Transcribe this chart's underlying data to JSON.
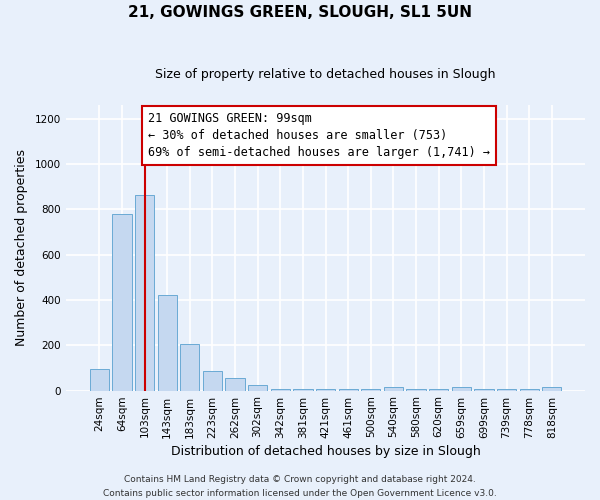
{
  "title": "21, GOWINGS GREEN, SLOUGH, SL1 5UN",
  "subtitle": "Size of property relative to detached houses in Slough",
  "xlabel": "Distribution of detached houses by size in Slough",
  "ylabel": "Number of detached properties",
  "bar_labels": [
    "24sqm",
    "64sqm",
    "103sqm",
    "143sqm",
    "183sqm",
    "223sqm",
    "262sqm",
    "302sqm",
    "342sqm",
    "381sqm",
    "421sqm",
    "461sqm",
    "500sqm",
    "540sqm",
    "580sqm",
    "620sqm",
    "659sqm",
    "699sqm",
    "739sqm",
    "778sqm",
    "818sqm"
  ],
  "bar_values": [
    95,
    780,
    865,
    420,
    205,
    85,
    55,
    25,
    8,
    5,
    5,
    5,
    5,
    15,
    5,
    5,
    15,
    5,
    5,
    5,
    15
  ],
  "bar_color": "#c5d8f0",
  "bar_edge_color": "#6aaad4",
  "vline_x_index": 2,
  "vline_color": "#cc0000",
  "annotation_line1": "21 GOWINGS GREEN: 99sqm",
  "annotation_line2": "← 30% of detached houses are smaller (753)",
  "annotation_line3": "69% of semi-detached houses are larger (1,741) →",
  "annotation_box_facecolor": "#ffffff",
  "annotation_box_edgecolor": "#cc0000",
  "ylim": [
    0,
    1260
  ],
  "yticks": [
    0,
    200,
    400,
    600,
    800,
    1000,
    1200
  ],
  "footer_line1": "Contains HM Land Registry data © Crown copyright and database right 2024.",
  "footer_line2": "Contains public sector information licensed under the Open Government Licence v3.0.",
  "background_color": "#e8f0fb",
  "grid_color": "#ffffff",
  "title_fontsize": 11,
  "subtitle_fontsize": 9,
  "axis_label_fontsize": 9,
  "tick_fontsize": 7.5,
  "annotation_fontsize": 8.5,
  "footer_fontsize": 6.5
}
